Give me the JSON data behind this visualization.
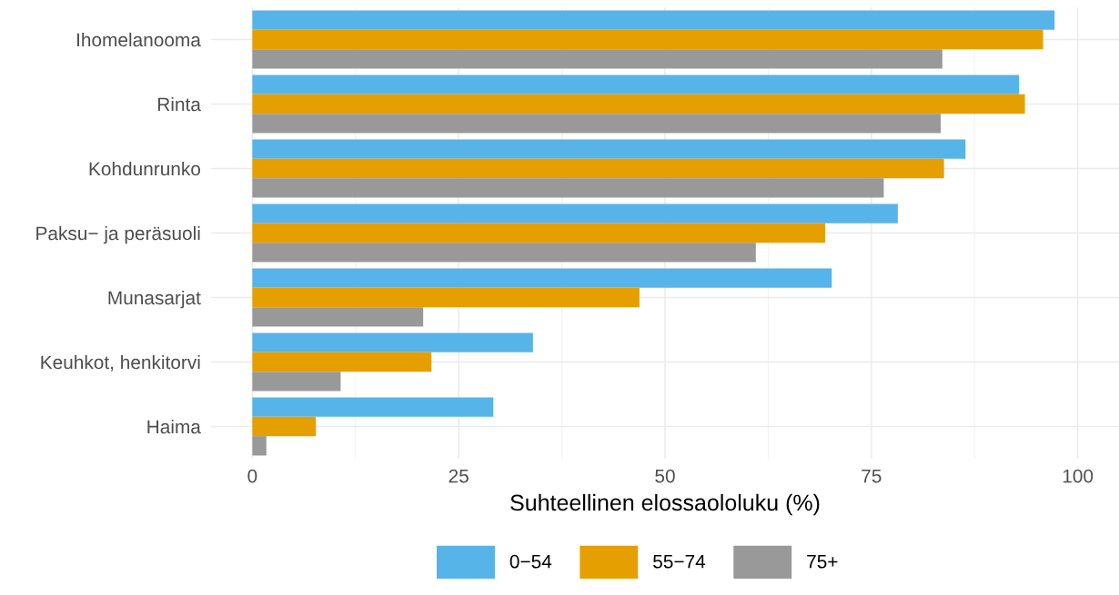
{
  "chart_data": {
    "type": "bar",
    "orientation": "horizontal",
    "xlabel": "Suhteellinen elossaololuku (%)",
    "categories": [
      "Ihomelanooma",
      "Rinta",
      "Kohdunrunko",
      "Paksu− ja peräsuoli",
      "Munasarjat",
      "Keuhkot, henkitorvi",
      "Haima"
    ],
    "series": [
      {
        "name": "0−54",
        "color": "#56b4e9",
        "values": [
          97.2,
          92.9,
          86.4,
          78.2,
          70.2,
          34.0,
          29.2
        ]
      },
      {
        "name": "55−74",
        "color": "#e69f00",
        "values": [
          95.8,
          93.6,
          83.8,
          69.4,
          46.9,
          21.7,
          7.7
        ]
      },
      {
        "name": "75+",
        "color": "#999999",
        "values": [
          83.6,
          83.4,
          76.5,
          61.0,
          20.7,
          10.7,
          1.7
        ]
      }
    ],
    "xlim": [
      -5,
      105
    ],
    "xticks": [
      0,
      25,
      50,
      75,
      100
    ],
    "grid": true,
    "legend": "bottom"
  }
}
